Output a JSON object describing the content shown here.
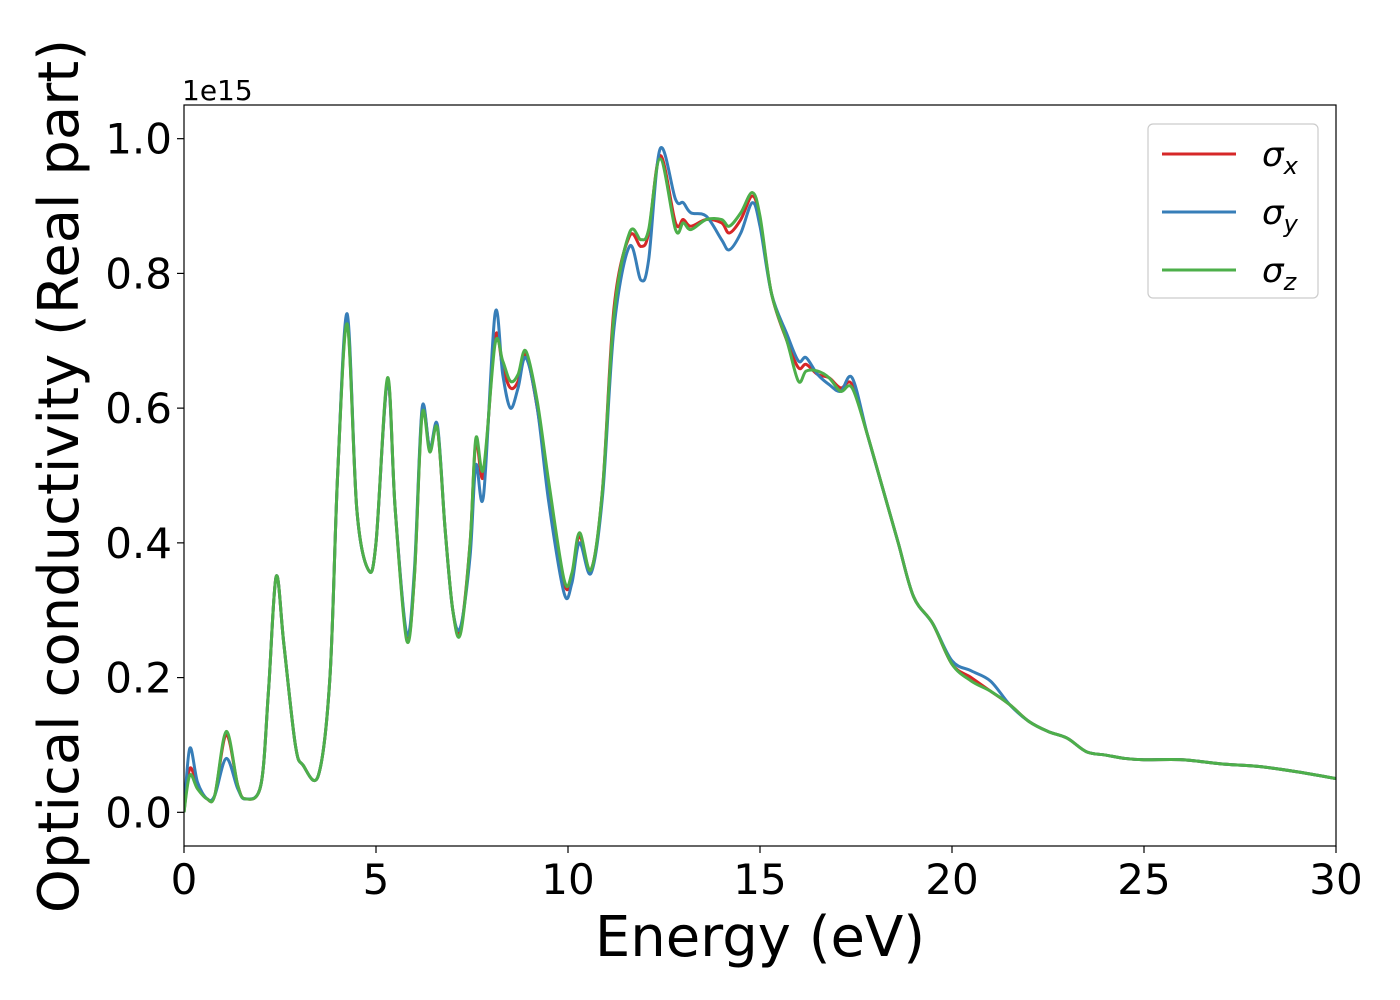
{
  "chart_data": {
    "type": "line",
    "title": "",
    "xlabel": "Energy (eV)",
    "ylabel": "Optical conductivity (Real part)",
    "y_offset_label": "1e15",
    "xlim": [
      0,
      30
    ],
    "ylim": [
      -0.05,
      1.05
    ],
    "xticks": [
      0,
      5,
      10,
      15,
      20,
      25,
      30
    ],
    "xtick_labels": [
      "0",
      "5",
      "10",
      "15",
      "20",
      "25",
      "30"
    ],
    "yticks": [
      0.0,
      0.2,
      0.4,
      0.6,
      0.8,
      1.0
    ],
    "ytick_labels": [
      "0.0",
      "0.2",
      "0.4",
      "0.6",
      "0.8",
      "1.0"
    ],
    "grid": false,
    "legend_position": "top-right",
    "series": [
      {
        "name": "σx",
        "symbol": "σ",
        "subscript": "x",
        "color": "#d62728",
        "points": [
          [
            0,
            0.0
          ],
          [
            0.15,
            0.065
          ],
          [
            0.35,
            0.04
          ],
          [
            0.6,
            0.02
          ],
          [
            0.8,
            0.025
          ],
          [
            1.1,
            0.115
          ],
          [
            1.4,
            0.04
          ],
          [
            1.6,
            0.02
          ],
          [
            2.0,
            0.04
          ],
          [
            2.2,
            0.18
          ],
          [
            2.4,
            0.35
          ],
          [
            2.6,
            0.25
          ],
          [
            2.9,
            0.1
          ],
          [
            3.1,
            0.07
          ],
          [
            3.5,
            0.055
          ],
          [
            3.8,
            0.2
          ],
          [
            4.0,
            0.5
          ],
          [
            4.25,
            0.73
          ],
          [
            4.5,
            0.45
          ],
          [
            4.8,
            0.36
          ],
          [
            5.0,
            0.4
          ],
          [
            5.3,
            0.64
          ],
          [
            5.5,
            0.45
          ],
          [
            5.8,
            0.26
          ],
          [
            6.0,
            0.35
          ],
          [
            6.2,
            0.595
          ],
          [
            6.4,
            0.54
          ],
          [
            6.6,
            0.57
          ],
          [
            6.8,
            0.42
          ],
          [
            7.0,
            0.3
          ],
          [
            7.2,
            0.27
          ],
          [
            7.45,
            0.4
          ],
          [
            7.6,
            0.55
          ],
          [
            7.8,
            0.5
          ],
          [
            8.1,
            0.705
          ],
          [
            8.3,
            0.66
          ],
          [
            8.5,
            0.63
          ],
          [
            8.7,
            0.64
          ],
          [
            8.9,
            0.68
          ],
          [
            9.2,
            0.6
          ],
          [
            9.5,
            0.48
          ],
          [
            9.9,
            0.34
          ],
          [
            10.1,
            0.35
          ],
          [
            10.3,
            0.41
          ],
          [
            10.6,
            0.36
          ],
          [
            10.9,
            0.48
          ],
          [
            11.2,
            0.75
          ],
          [
            11.6,
            0.855
          ],
          [
            11.9,
            0.84
          ],
          [
            12.1,
            0.86
          ],
          [
            12.4,
            0.975
          ],
          [
            12.8,
            0.875
          ],
          [
            13.0,
            0.88
          ],
          [
            13.2,
            0.87
          ],
          [
            13.6,
            0.88
          ],
          [
            14.0,
            0.875
          ],
          [
            14.2,
            0.86
          ],
          [
            14.5,
            0.88
          ],
          [
            14.8,
            0.915
          ],
          [
            15.0,
            0.88
          ],
          [
            15.3,
            0.77
          ],
          [
            15.7,
            0.7
          ],
          [
            16.0,
            0.66
          ],
          [
            16.2,
            0.665
          ],
          [
            16.5,
            0.65
          ],
          [
            16.8,
            0.645
          ],
          [
            17.1,
            0.63
          ],
          [
            17.4,
            0.635
          ],
          [
            17.8,
            0.56
          ],
          [
            18.2,
            0.48
          ],
          [
            18.6,
            0.4
          ],
          [
            19.0,
            0.32
          ],
          [
            19.5,
            0.28
          ],
          [
            20.0,
            0.22
          ],
          [
            20.5,
            0.2
          ],
          [
            21.0,
            0.18
          ],
          [
            21.5,
            0.16
          ],
          [
            22.0,
            0.135
          ],
          [
            22.5,
            0.12
          ],
          [
            23.0,
            0.11
          ],
          [
            23.5,
            0.09
          ],
          [
            24.0,
            0.085
          ],
          [
            24.5,
            0.08
          ],
          [
            25.0,
            0.078
          ],
          [
            26.0,
            0.078
          ],
          [
            27.0,
            0.072
          ],
          [
            28.0,
            0.068
          ],
          [
            29.0,
            0.06
          ],
          [
            30.0,
            0.05
          ]
        ]
      },
      {
        "name": "σy",
        "symbol": "σ",
        "subscript": "y",
        "color": "#377eb8",
        "points": [
          [
            0,
            0.0
          ],
          [
            0.15,
            0.095
          ],
          [
            0.35,
            0.045
          ],
          [
            0.6,
            0.02
          ],
          [
            0.8,
            0.025
          ],
          [
            1.1,
            0.08
          ],
          [
            1.4,
            0.035
          ],
          [
            1.6,
            0.02
          ],
          [
            2.0,
            0.04
          ],
          [
            2.2,
            0.18
          ],
          [
            2.4,
            0.35
          ],
          [
            2.6,
            0.25
          ],
          [
            2.9,
            0.1
          ],
          [
            3.1,
            0.07
          ],
          [
            3.5,
            0.055
          ],
          [
            3.8,
            0.2
          ],
          [
            4.0,
            0.5
          ],
          [
            4.25,
            0.74
          ],
          [
            4.5,
            0.45
          ],
          [
            4.8,
            0.36
          ],
          [
            5.0,
            0.4
          ],
          [
            5.3,
            0.64
          ],
          [
            5.5,
            0.45
          ],
          [
            5.8,
            0.265
          ],
          [
            6.0,
            0.36
          ],
          [
            6.2,
            0.6
          ],
          [
            6.4,
            0.54
          ],
          [
            6.6,
            0.575
          ],
          [
            6.8,
            0.42
          ],
          [
            7.0,
            0.3
          ],
          [
            7.2,
            0.275
          ],
          [
            7.45,
            0.38
          ],
          [
            7.6,
            0.515
          ],
          [
            7.8,
            0.47
          ],
          [
            8.1,
            0.74
          ],
          [
            8.3,
            0.65
          ],
          [
            8.5,
            0.6
          ],
          [
            8.7,
            0.63
          ],
          [
            8.9,
            0.675
          ],
          [
            9.2,
            0.6
          ],
          [
            9.5,
            0.46
          ],
          [
            9.9,
            0.325
          ],
          [
            10.1,
            0.34
          ],
          [
            10.3,
            0.4
          ],
          [
            10.6,
            0.355
          ],
          [
            10.9,
            0.47
          ],
          [
            11.2,
            0.72
          ],
          [
            11.6,
            0.84
          ],
          [
            11.9,
            0.79
          ],
          [
            12.1,
            0.82
          ],
          [
            12.4,
            0.985
          ],
          [
            12.8,
            0.91
          ],
          [
            13.0,
            0.905
          ],
          [
            13.2,
            0.89
          ],
          [
            13.6,
            0.885
          ],
          [
            14.0,
            0.85
          ],
          [
            14.2,
            0.835
          ],
          [
            14.5,
            0.86
          ],
          [
            14.8,
            0.905
          ],
          [
            15.0,
            0.87
          ],
          [
            15.3,
            0.77
          ],
          [
            15.7,
            0.71
          ],
          [
            16.0,
            0.67
          ],
          [
            16.2,
            0.675
          ],
          [
            16.5,
            0.65
          ],
          [
            16.8,
            0.635
          ],
          [
            17.1,
            0.625
          ],
          [
            17.4,
            0.645
          ],
          [
            17.8,
            0.56
          ],
          [
            18.2,
            0.48
          ],
          [
            18.6,
            0.4
          ],
          [
            19.0,
            0.32
          ],
          [
            19.5,
            0.28
          ],
          [
            20.0,
            0.225
          ],
          [
            20.5,
            0.21
          ],
          [
            21.0,
            0.195
          ],
          [
            21.5,
            0.16
          ],
          [
            22.0,
            0.135
          ],
          [
            22.5,
            0.12
          ],
          [
            23.0,
            0.11
          ],
          [
            23.5,
            0.09
          ],
          [
            24.0,
            0.085
          ],
          [
            24.5,
            0.08
          ],
          [
            25.0,
            0.078
          ],
          [
            26.0,
            0.078
          ],
          [
            27.0,
            0.072
          ],
          [
            28.0,
            0.068
          ],
          [
            29.0,
            0.06
          ],
          [
            30.0,
            0.05
          ]
        ]
      },
      {
        "name": "σz",
        "symbol": "σ",
        "subscript": "z",
        "color": "#4daf4a",
        "points": [
          [
            0,
            0.0
          ],
          [
            0.15,
            0.055
          ],
          [
            0.35,
            0.035
          ],
          [
            0.6,
            0.02
          ],
          [
            0.8,
            0.025
          ],
          [
            1.1,
            0.12
          ],
          [
            1.4,
            0.04
          ],
          [
            1.6,
            0.02
          ],
          [
            2.0,
            0.04
          ],
          [
            2.2,
            0.18
          ],
          [
            2.4,
            0.35
          ],
          [
            2.6,
            0.25
          ],
          [
            2.9,
            0.1
          ],
          [
            3.1,
            0.07
          ],
          [
            3.5,
            0.055
          ],
          [
            3.8,
            0.2
          ],
          [
            4.0,
            0.5
          ],
          [
            4.25,
            0.725
          ],
          [
            4.5,
            0.45
          ],
          [
            4.8,
            0.36
          ],
          [
            5.0,
            0.4
          ],
          [
            5.3,
            0.645
          ],
          [
            5.5,
            0.45
          ],
          [
            5.8,
            0.255
          ],
          [
            6.0,
            0.35
          ],
          [
            6.2,
            0.59
          ],
          [
            6.4,
            0.535
          ],
          [
            6.6,
            0.57
          ],
          [
            6.8,
            0.42
          ],
          [
            7.0,
            0.3
          ],
          [
            7.2,
            0.265
          ],
          [
            7.45,
            0.4
          ],
          [
            7.6,
            0.555
          ],
          [
            7.8,
            0.51
          ],
          [
            8.1,
            0.695
          ],
          [
            8.3,
            0.67
          ],
          [
            8.5,
            0.64
          ],
          [
            8.7,
            0.65
          ],
          [
            8.9,
            0.685
          ],
          [
            9.2,
            0.61
          ],
          [
            9.5,
            0.49
          ],
          [
            9.9,
            0.345
          ],
          [
            10.1,
            0.355
          ],
          [
            10.3,
            0.415
          ],
          [
            10.6,
            0.36
          ],
          [
            10.9,
            0.48
          ],
          [
            11.2,
            0.74
          ],
          [
            11.6,
            0.86
          ],
          [
            11.9,
            0.85
          ],
          [
            12.1,
            0.865
          ],
          [
            12.4,
            0.97
          ],
          [
            12.8,
            0.865
          ],
          [
            13.0,
            0.875
          ],
          [
            13.2,
            0.865
          ],
          [
            13.6,
            0.88
          ],
          [
            14.0,
            0.88
          ],
          [
            14.2,
            0.87
          ],
          [
            14.5,
            0.89
          ],
          [
            14.8,
            0.92
          ],
          [
            15.0,
            0.885
          ],
          [
            15.3,
            0.77
          ],
          [
            15.7,
            0.7
          ],
          [
            16.0,
            0.64
          ],
          [
            16.2,
            0.655
          ],
          [
            16.5,
            0.655
          ],
          [
            16.8,
            0.645
          ],
          [
            17.1,
            0.625
          ],
          [
            17.4,
            0.63
          ],
          [
            17.8,
            0.56
          ],
          [
            18.2,
            0.48
          ],
          [
            18.6,
            0.4
          ],
          [
            19.0,
            0.32
          ],
          [
            19.5,
            0.28
          ],
          [
            20.0,
            0.22
          ],
          [
            20.5,
            0.195
          ],
          [
            21.0,
            0.18
          ],
          [
            21.5,
            0.16
          ],
          [
            22.0,
            0.135
          ],
          [
            22.5,
            0.12
          ],
          [
            23.0,
            0.11
          ],
          [
            23.5,
            0.09
          ],
          [
            24.0,
            0.085
          ],
          [
            24.5,
            0.08
          ],
          [
            25.0,
            0.078
          ],
          [
            26.0,
            0.078
          ],
          [
            27.0,
            0.072
          ],
          [
            28.0,
            0.068
          ],
          [
            29.0,
            0.06
          ],
          [
            30.0,
            0.05
          ]
        ]
      }
    ]
  }
}
